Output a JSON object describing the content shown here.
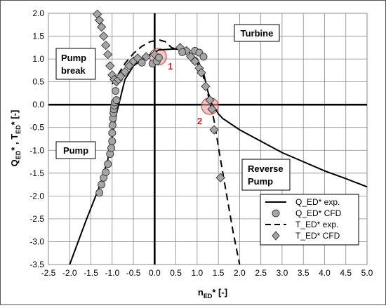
{
  "chart_data": {
    "type": "line",
    "xlabel_main": "n",
    "xlabel_sub": "ED",
    "xlabel_tail": "* [-]",
    "ylabel_q": "Q",
    "ylabel_q_sub": "ED",
    "ylabel_mid": "* , T",
    "ylabel_t_sub": "ED",
    "ylabel_tail": "* [-]",
    "xlim": [
      -2.5,
      5.0
    ],
    "ylim": [
      -3.5,
      2.0
    ],
    "xticks": [
      -2.5,
      -2.0,
      -1.5,
      -1.0,
      -0.5,
      0.0,
      0.5,
      1.0,
      1.5,
      2.0,
      2.5,
      3.0,
      3.5,
      4.0,
      4.5,
      5.0
    ],
    "yticks": [
      2.0,
      1.5,
      1.0,
      0.5,
      0.0,
      -0.5,
      -1.0,
      -1.5,
      -2.0,
      -2.5,
      -3.0,
      -3.5
    ],
    "grid": true,
    "legend_position": "bottom-right",
    "region_labels": {
      "turbine": "Turbine",
      "pump_break_1": "Pump",
      "pump_break_2": "break",
      "pump": "Pump",
      "reverse_pump_1": "Reverse",
      "reverse_pump_2": "Pump"
    },
    "markers": [
      {
        "label": "1",
        "x": 0.08,
        "y": 1.05
      },
      {
        "label": "2",
        "x": 1.3,
        "y": -0.03
      }
    ],
    "series": [
      {
        "name": "Q_ED* exp.",
        "style": "solid",
        "x": [
          -2.0,
          -1.6,
          -1.3,
          -1.1,
          -1.0,
          -0.9,
          -0.7,
          -0.5,
          -0.2,
          0.1,
          0.5,
          0.8,
          1.0,
          1.15,
          1.25,
          1.35,
          1.45,
          1.5,
          1.6,
          2.0,
          2.5,
          3.0,
          3.5,
          4.0,
          4.5,
          5.0
        ],
        "y": [
          -3.5,
          -2.5,
          -1.8,
          -1.2,
          -0.7,
          -0.2,
          0.55,
          0.85,
          1.05,
          1.2,
          1.22,
          1.15,
          1.0,
          0.7,
          0.3,
          0.0,
          -0.12,
          -0.2,
          -0.3,
          -0.55,
          -0.8,
          -1.05,
          -1.25,
          -1.45,
          -1.62,
          -1.8
        ]
      },
      {
        "name": "Q_ED* CFD",
        "style": "circle",
        "x": [
          -1.3,
          -1.25,
          -1.2,
          -1.15,
          -1.1,
          -1.05,
          -1.02,
          -1.0,
          -1.0,
          -0.99,
          -0.98,
          -0.97,
          -0.96,
          -0.95,
          -0.94,
          -0.92,
          -0.9,
          -0.3,
          -0.05,
          0.05,
          0.1,
          0.65,
          0.95,
          1.05,
          1.15
        ],
        "y": [
          -1.93,
          -1.75,
          -1.6,
          -1.48,
          -1.3,
          -1.08,
          -0.95,
          -0.8,
          -0.62,
          -0.45,
          -0.3,
          -0.18,
          -0.1,
          -0.02,
          0.05,
          0.3,
          0.1,
          0.92,
          0.9,
          0.95,
          1.03,
          1.15,
          1.18,
          1.14,
          1.05
        ]
      },
      {
        "name": "T_ED* exp.",
        "style": "dashed",
        "x": [
          -1.0,
          -0.9,
          -0.7,
          -0.5,
          -0.3,
          -0.1,
          0.1,
          0.25,
          0.4,
          0.7,
          0.95,
          1.1,
          1.2,
          1.3,
          1.4,
          1.55,
          1.7,
          1.85,
          2.0
        ],
        "y": [
          0.45,
          0.6,
          0.9,
          1.12,
          1.28,
          1.38,
          1.42,
          1.38,
          1.25,
          1.15,
          1.0,
          0.75,
          0.45,
          0.05,
          -0.35,
          -1.2,
          -2.0,
          -2.8,
          -3.5
        ]
      },
      {
        "name": "T_ED* CFD",
        "style": "diamond",
        "x": [
          -1.35,
          -1.3,
          -1.25,
          -1.2,
          -1.15,
          -1.1,
          -1.05,
          -1.0,
          -0.95,
          -0.9,
          -0.85,
          -0.8,
          -0.7,
          -0.6,
          -0.5,
          -0.4,
          -0.2,
          0.0,
          0.6,
          0.75,
          0.85,
          0.95,
          1.05,
          1.1,
          1.2,
          1.3,
          1.35,
          1.4,
          1.55
        ],
        "y": [
          1.98,
          1.85,
          1.7,
          1.5,
          1.3,
          1.1,
          0.85,
          0.65,
          0.55,
          0.5,
          0.55,
          0.62,
          0.72,
          0.85,
          0.95,
          1.02,
          1.05,
          1.1,
          1.25,
          1.18,
          1.05,
          0.95,
          0.8,
          0.7,
          0.4,
          0.1,
          -0.1,
          -0.55,
          -1.6
        ]
      }
    ]
  }
}
